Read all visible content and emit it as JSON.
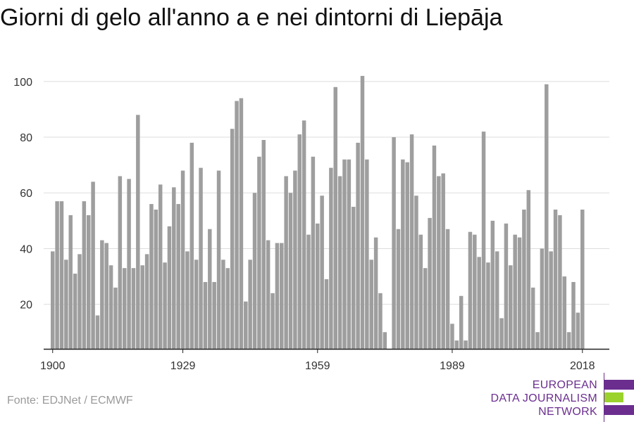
{
  "title": "Giorni di gelo all'anno a e nei dintorni di Liepāja",
  "source": "Fonte: EDJNet / ECMWF",
  "logo": {
    "lines": [
      "EUROPEAN",
      "DATA JOURNALISM",
      "NETWORK"
    ],
    "colors": {
      "purple": "#6b2e8f",
      "green": "#9bd22c"
    }
  },
  "chart_data": {
    "type": "bar",
    "title": "Giorni di gelo all'anno a e nei dintorni di Liepāja",
    "xlabel": "",
    "ylabel": "",
    "x_start": 1900,
    "xticks": [
      1900,
      1929,
      1959,
      1989,
      2018
    ],
    "yticks": [
      20,
      40,
      60,
      80,
      100
    ],
    "xlim": [
      1898,
      2024
    ],
    "ylim": [
      4,
      104
    ],
    "grid": true,
    "bar_color": "#9e9e9e",
    "values": [
      39,
      57,
      57,
      36,
      52,
      31,
      38,
      57,
      52,
      64,
      16,
      43,
      42,
      34,
      26,
      66,
      33,
      65,
      33,
      88,
      34,
      38,
      56,
      54,
      63,
      35,
      48,
      62,
      56,
      68,
      39,
      78,
      36,
      69,
      28,
      47,
      28,
      68,
      36,
      33,
      83,
      93,
      94,
      21,
      36,
      60,
      73,
      79,
      43,
      24,
      42,
      42,
      66,
      60,
      68,
      81,
      86,
      45,
      73,
      49,
      59,
      29,
      69,
      98,
      66,
      72,
      72,
      55,
      78,
      102,
      72,
      36,
      44,
      24,
      10,
      4,
      80,
      47,
      72,
      71,
      81,
      59,
      45,
      33,
      51,
      77,
      66,
      67,
      47,
      13,
      7,
      23,
      7,
      46,
      45,
      37,
      82,
      35,
      50,
      39,
      15,
      49,
      34,
      45,
      44,
      54,
      61,
      26,
      10,
      40,
      99,
      39,
      54,
      52,
      30,
      10,
      28,
      17,
      54
    ]
  }
}
